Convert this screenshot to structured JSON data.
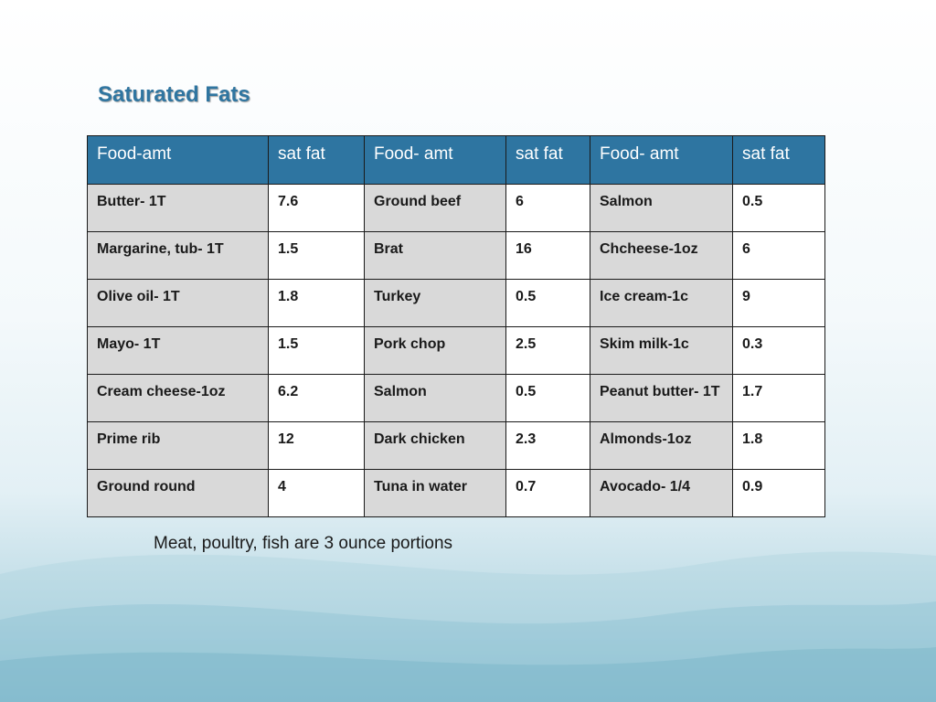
{
  "slide": {
    "title": "Saturated Fats",
    "note": "Meat, poultry, fish are 3 ounce portions",
    "colors": {
      "title": "#2f75a0",
      "header_bg": "#2e75a1",
      "food_cell_bg": "#d9d9d9"
    }
  },
  "table": {
    "headers": [
      "Food-amt",
      "sat fat",
      "Food- amt",
      "sat fat",
      "Food- amt",
      "sat fat"
    ],
    "rows": [
      [
        "Butter- 1T",
        "7.6",
        "Ground beef",
        " 6",
        "Salmon",
        "0.5"
      ],
      [
        "Margarine, tub- 1T",
        "1.5",
        "Brat",
        "16",
        "Chcheese-1oz",
        "6"
      ],
      [
        "Olive oil- 1T",
        "1.8",
        "Turkey",
        "0.5",
        "Ice cream-1c",
        "9"
      ],
      [
        "Mayo- 1T",
        "1.5",
        "Pork chop",
        "2.5",
        "Skim milk-1c",
        "0.3"
      ],
      [
        "Cream cheese-1oz",
        "6.2",
        "Salmon",
        "0.5",
        "Peanut butter- 1T",
        "1.7"
      ],
      [
        "Prime rib",
        "12",
        "Dark chicken",
        "2.3",
        "Almonds-1oz",
        "1.8"
      ],
      [
        "Ground round",
        "4",
        "Tuna in water",
        "0.7",
        "Avocado- 1/4",
        "0.9"
      ]
    ]
  }
}
